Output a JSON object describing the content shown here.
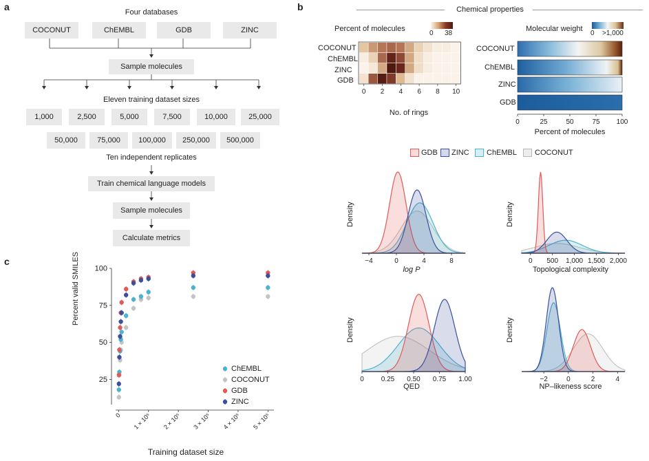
{
  "panel_a": {
    "label": "a",
    "heading": "Four databases",
    "databases": [
      "COCONUT",
      "ChEMBL",
      "GDB",
      "ZINC"
    ],
    "step_sample": "Sample molecules",
    "sizes_heading": "Eleven training dataset sizes",
    "sizes_row1": [
      "1,000",
      "2,500",
      "5,000",
      "7,500",
      "10,000",
      "25,000"
    ],
    "sizes_row2": [
      "50,000",
      "75,000",
      "100,000",
      "250,000",
      "500,000"
    ],
    "replicates": "Ten independent replicates",
    "train": "Train chemical language models",
    "sample2": "Sample molecules",
    "metrics": "Calculate metrics"
  },
  "panel_b": {
    "label": "b",
    "title": "Chemical properties",
    "legend_groups": [
      "GDB",
      "ZINC",
      "ChEMBL",
      "COCONUT"
    ],
    "colors": {
      "GDB": "#e05a57",
      "ZINC": "#3b4f9a",
      "ChEMBL": "#4bb3cf",
      "COCONUT": "#c4c4c4"
    }
  },
  "panel_c": {
    "label": "c"
  },
  "chart_data": [
    {
      "type": "heatmap",
      "title": "Percent of molecules",
      "colorbar_min": "0",
      "colorbar_max": "38",
      "rows": [
        "COCONUT",
        "ChEMBL",
        "ZINC",
        "GDB"
      ],
      "xlabel": "No. of rings",
      "xticks": [
        "0",
        "2",
        "4",
        "6",
        "8",
        "10"
      ],
      "columns": [
        0,
        1,
        2,
        3,
        4,
        5,
        6,
        7,
        8,
        9,
        10
      ],
      "values": [
        [
          8,
          14,
          18,
          20,
          18,
          12,
          6,
          3,
          1,
          1,
          0
        ],
        [
          1,
          6,
          20,
          32,
          24,
          12,
          4,
          1,
          0,
          0,
          0
        ],
        [
          0,
          2,
          12,
          38,
          30,
          12,
          4,
          1,
          0,
          0,
          0
        ],
        [
          3,
          22,
          36,
          26,
          10,
          3,
          0,
          0,
          0,
          0,
          0
        ]
      ]
    },
    {
      "type": "bar",
      "title": "Molecular weight",
      "colorbar_min": "0",
      "colorbar_max": ">1,000",
      "categories": [
        "COCONUT",
        "ChEMBL",
        "ZINC",
        "GDB"
      ],
      "xlabel": "Percent of molecules",
      "xticks": [
        "0",
        "25",
        "50",
        "75",
        "100"
      ],
      "xlim": [
        0,
        100
      ]
    },
    {
      "type": "area",
      "xlabel": "log P",
      "ylabel": "Density",
      "xticks": [
        "−4",
        "0",
        "4",
        "8"
      ],
      "xlim": [
        -5,
        10
      ],
      "series": [
        {
          "name": "GDB",
          "mean": 0.2,
          "sd": 1.2,
          "peak": 1.0
        },
        {
          "name": "ZINC",
          "mean": 3.0,
          "sd": 1.3,
          "peak": 0.78
        },
        {
          "name": "ChEMBL",
          "mean": 3.4,
          "sd": 1.9,
          "peak": 0.62
        },
        {
          "name": "COCONUT",
          "mean": 3.0,
          "sd": 2.3,
          "peak": 0.52
        }
      ]
    },
    {
      "type": "area",
      "xlabel": "Topological complexity",
      "ylabel": "Density",
      "xticks": [
        "0",
        "500",
        "1,000",
        "1,500",
        "2,000"
      ],
      "xlim": [
        -200,
        2150
      ],
      "series": [
        {
          "name": "GDB",
          "mean": 230,
          "sd": 50,
          "peak": 1.0
        },
        {
          "name": "ZINC",
          "mean": 600,
          "sd": 230,
          "peak": 0.26
        },
        {
          "name": "ChEMBL",
          "mean": 800,
          "sd": 380,
          "peak": 0.16
        },
        {
          "name": "COCONUT",
          "mean": 600,
          "sd": 500,
          "peak": 0.12
        }
      ]
    },
    {
      "type": "area",
      "xlabel": "QED",
      "ylabel": "Density",
      "xticks": [
        "0",
        "0.25",
        "0.50",
        "0.75",
        "1.00"
      ],
      "xlim": [
        0,
        1.0
      ],
      "series": [
        {
          "name": "GDB",
          "mean": 0.55,
          "sd": 0.1,
          "peak": 0.92
        },
        {
          "name": "ZINC",
          "mean": 0.8,
          "sd": 0.1,
          "peak": 0.86
        },
        {
          "name": "ChEMBL",
          "mean": 0.55,
          "sd": 0.2,
          "peak": 0.52
        },
        {
          "name": "COCONUT",
          "mean": 0.35,
          "sd": 0.3,
          "peak": 0.42
        }
      ]
    },
    {
      "type": "area",
      "xlabel": "NP–likeness score",
      "ylabel": "Density",
      "xticks": [
        "−2",
        "0",
        "2",
        "4"
      ],
      "xlim": [
        -3.8,
        4.6
      ],
      "series": [
        {
          "name": "GDB",
          "mean": 1.1,
          "sd": 0.7,
          "peak": 0.5
        },
        {
          "name": "ZINC",
          "mean": -1.3,
          "sd": 0.5,
          "peak": 1.0
        },
        {
          "name": "ChEMBL",
          "mean": -1.2,
          "sd": 0.55,
          "peak": 0.82
        },
        {
          "name": "COCONUT",
          "mean": 1.6,
          "sd": 1.2,
          "peak": 0.45
        }
      ]
    },
    {
      "type": "scatter",
      "xlabel": "Training dataset size",
      "ylabel": "Percent valid SMILES",
      "xlim": [
        -10000,
        520000
      ],
      "ylim": [
        8,
        100
      ],
      "yticks": [
        "25",
        "50",
        "75",
        "100"
      ],
      "xtick_labels": [
        "0",
        "1 × 10⁵",
        "2 × 10⁵",
        "3 × 10⁵",
        "4 × 10⁵",
        "5 × 10⁵"
      ],
      "x": [
        1000,
        2500,
        5000,
        7500,
        10000,
        25000,
        50000,
        75000,
        100000,
        250000,
        500000
      ],
      "series": [
        {
          "name": "ChEMBL",
          "values": [
            18,
            30,
            44,
            52,
            57,
            68,
            79,
            81,
            84,
            87,
            87
          ]
        },
        {
          "name": "COCONUT",
          "values": [
            13,
            28,
            38,
            45,
            50,
            60,
            73,
            79,
            80,
            81,
            81
          ]
        },
        {
          "name": "GDB",
          "values": [
            28,
            45,
            60,
            70,
            77,
            86,
            91,
            93,
            94,
            97,
            97
          ]
        },
        {
          "name": "ZINC",
          "values": [
            22,
            40,
            54,
            64,
            70,
            82,
            90,
            92,
            93,
            95,
            95
          ]
        }
      ]
    }
  ]
}
